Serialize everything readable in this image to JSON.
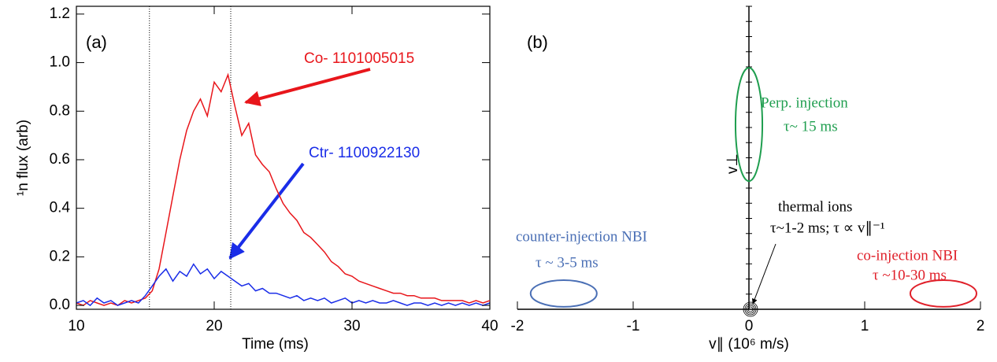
{
  "chart_data": [
    {
      "type": "line",
      "label": "(a)",
      "xlabel": "Time (ms)",
      "ylabel": "¹n flux (arb)",
      "xlim": [
        10,
        40
      ],
      "ylim": [
        -0.016,
        1.232
      ],
      "xticks": [
        10,
        20,
        30,
        40
      ],
      "yticks": [
        {
          "value": 0,
          "label": "0.0"
        },
        0.2,
        0.4,
        0.6,
        0.8,
        {
          "value": 1,
          "label": "1.0"
        },
        1.2
      ],
      "vlines": [
        15.3,
        21.2
      ],
      "x": [
        10,
        10.5,
        11,
        11.5,
        12,
        12.5,
        13,
        13.5,
        14,
        14.5,
        15,
        15.5,
        16,
        16.5,
        17,
        17.5,
        18,
        18.5,
        19,
        19.5,
        20,
        20.5,
        21,
        21.5,
        22,
        22.5,
        23,
        23.5,
        24,
        24.5,
        25,
        25.5,
        26,
        26.5,
        27,
        27.5,
        28,
        28.5,
        29,
        29.5,
        30,
        30.5,
        31,
        31.5,
        32,
        32.5,
        33,
        33.5,
        34,
        34.5,
        35,
        35.5,
        36,
        36.5,
        37,
        37.5,
        38,
        38.5,
        39,
        39.5,
        40
      ],
      "series": [
        {
          "name": "Co- 1101005015",
          "color": "#e8161b",
          "values": [
            0.01,
            0.0,
            0.02,
            0.01,
            0.0,
            0.01,
            0.0,
            0.02,
            0.01,
            0.02,
            0.03,
            0.06,
            0.15,
            0.3,
            0.45,
            0.6,
            0.72,
            0.8,
            0.85,
            0.78,
            0.92,
            0.88,
            0.95,
            0.82,
            0.7,
            0.75,
            0.62,
            0.58,
            0.55,
            0.48,
            0.42,
            0.38,
            0.35,
            0.3,
            0.28,
            0.25,
            0.22,
            0.18,
            0.16,
            0.13,
            0.12,
            0.1,
            0.09,
            0.08,
            0.07,
            0.06,
            0.05,
            0.05,
            0.04,
            0.04,
            0.03,
            0.03,
            0.03,
            0.02,
            0.02,
            0.02,
            0.02,
            0.01,
            0.02,
            0.01,
            0.02
          ]
        },
        {
          "name": "Ctr- 1100922130",
          "color": "#1a2de8",
          "values": [
            0.01,
            0.02,
            0.0,
            0.03,
            0.01,
            0.02,
            0.0,
            0.01,
            0.02,
            0.01,
            0.04,
            0.08,
            0.12,
            0.15,
            0.1,
            0.14,
            0.12,
            0.17,
            0.13,
            0.15,
            0.11,
            0.14,
            0.12,
            0.1,
            0.08,
            0.09,
            0.06,
            0.07,
            0.05,
            0.05,
            0.04,
            0.03,
            0.04,
            0.02,
            0.03,
            0.02,
            0.03,
            0.01,
            0.02,
            0.03,
            0.01,
            0.02,
            0.01,
            0.02,
            0.01,
            0.01,
            0.02,
            0.01,
            0.0,
            0.01,
            0.01,
            0.0,
            0.01,
            0.0,
            0.01,
            0.0,
            0.01,
            0.0,
            0.01,
            0.0,
            0.01
          ]
        }
      ]
    },
    {
      "type": "ellipse",
      "label": "(b)",
      "xlabel": "v∥ (10⁶ m/s)",
      "ylabel": "v⊥",
      "xlim": [
        -2,
        2
      ],
      "ylim": [
        0,
        1
      ],
      "xticks": [
        -2,
        -1,
        0,
        1,
        2
      ],
      "regions": [
        {
          "name": "Perp. injection",
          "tau": "τ~ 15 ms",
          "color": "#1f9e4f",
          "cx": 0,
          "cy": 0.61,
          "rx": 0.116,
          "ry": 0.187
        },
        {
          "name": "counter-injection NBI",
          "tau": "τ ~ 3-5 ms",
          "color": "#4a6fb5",
          "cx": -1.6,
          "cy": 0.052,
          "rx": 0.286,
          "ry": 0.044
        },
        {
          "name": "co-injection NBI",
          "tau": "τ ~10-30 ms",
          "color": "#e0202a",
          "cx": 1.68,
          "cy": 0.052,
          "rx": 0.286,
          "ry": 0.044
        }
      ],
      "annotations": [
        "thermal ions",
        "τ~1-2 ms; τ ∝ v∥⁻¹"
      ]
    }
  ]
}
